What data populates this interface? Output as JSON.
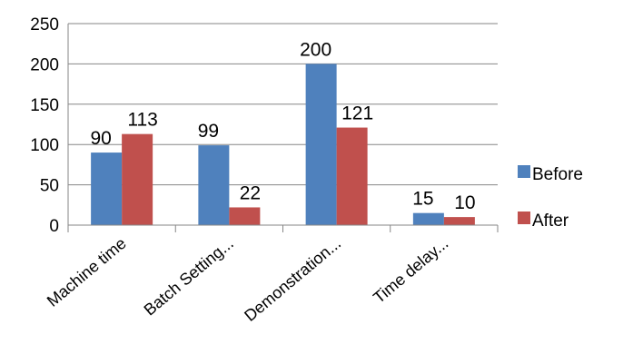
{
  "chart_data": {
    "type": "bar",
    "categories": [
      "Machine time",
      "Batch Setting...",
      "Demonstration...",
      "Time delay..."
    ],
    "series": [
      {
        "name": "Before",
        "values": [
          90,
          99,
          200,
          15
        ],
        "color": "#4F81BD"
      },
      {
        "name": "After",
        "values": [
          113,
          22,
          121,
          10
        ],
        "color": "#C0504D"
      }
    ],
    "ylim": [
      0,
      250
    ],
    "yticks": [
      0,
      50,
      100,
      150,
      200,
      250
    ],
    "grid": true,
    "legend": "right",
    "xlabel": "",
    "ylabel": "",
    "title": ""
  }
}
